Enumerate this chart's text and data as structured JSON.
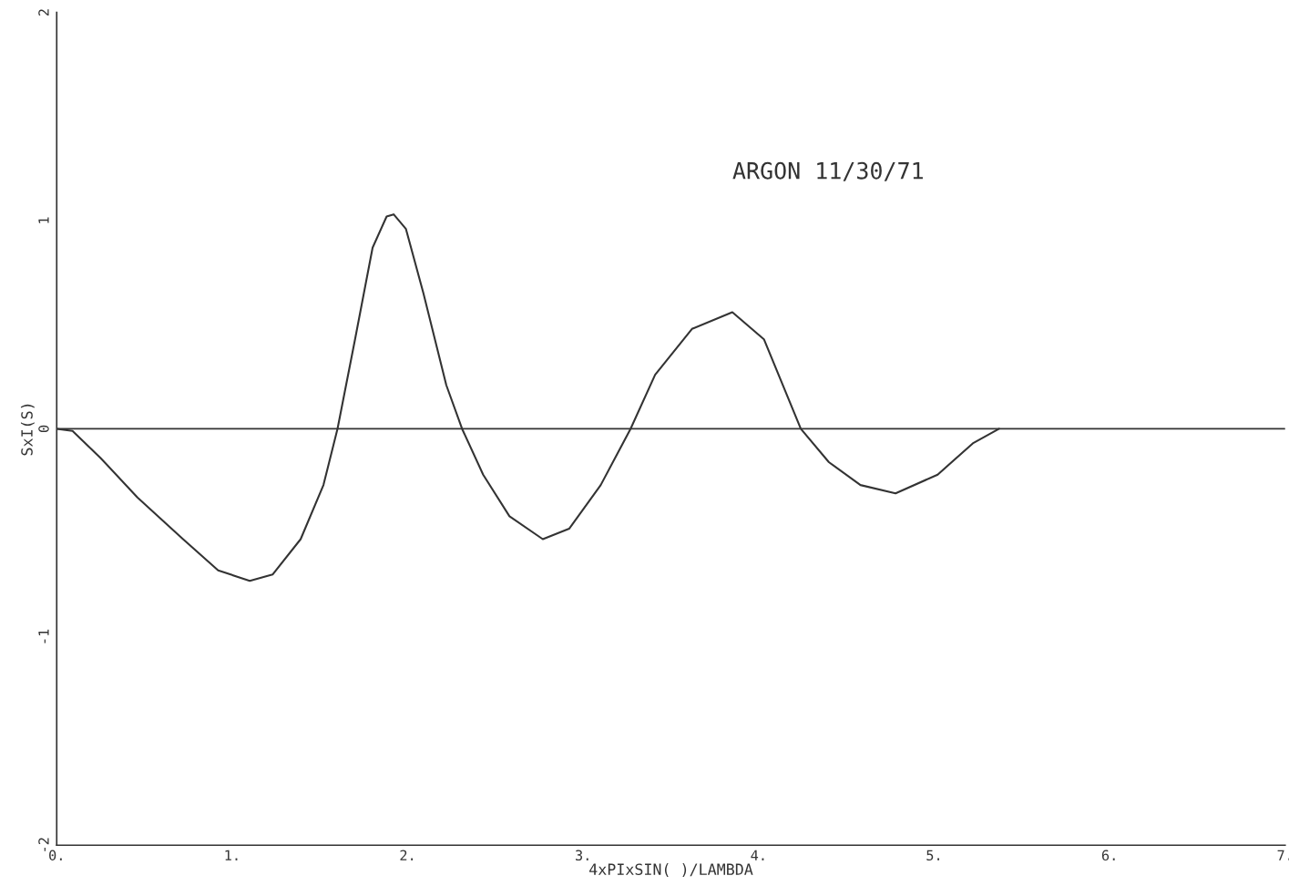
{
  "chart_data": {
    "type": "line",
    "xlabel": "4xPIxSIN( )/LAMBDA",
    "ylabel": "SxI(S)",
    "annotations": [
      "ARGON 11/30/71"
    ],
    "x": [
      0,
      0.09,
      0.25,
      0.46,
      0.72,
      0.92,
      1.1,
      1.23,
      1.39,
      1.52,
      1.6,
      1.7,
      1.8,
      1.88,
      1.92,
      1.99,
      2.09,
      2.22,
      2.31,
      2.43,
      2.58,
      2.77,
      2.92,
      3.1,
      3.27,
      3.41,
      3.62,
      3.85,
      4.03,
      4.24,
      4.4,
      4.58,
      4.78,
      5.02,
      5.22,
      5.37
    ],
    "series": [
      {
        "color": "#333333",
        "values": [
          0,
          -0.01,
          -0.14,
          -0.33,
          -0.53,
          -0.68,
          -0.73,
          -0.7,
          -0.53,
          -0.27,
          0,
          0.43,
          0.87,
          1.02,
          1.03,
          0.96,
          0.65,
          0.21,
          0,
          -0.22,
          -0.42,
          -0.53,
          -0.48,
          -0.27,
          0,
          0.26,
          0.48,
          0.56,
          0.43,
          0,
          -0.16,
          -0.27,
          -0.31,
          -0.22,
          -0.07,
          0
        ]
      }
    ],
    "ref_lines": [
      {
        "axis": "y",
        "value": 0,
        "color": "#333333"
      }
    ],
    "xlim": [
      0,
      7
    ],
    "ylim": [
      -2,
      2
    ],
    "xticks": [
      {
        "value": 0,
        "label": "0."
      },
      {
        "value": 1,
        "label": "1."
      },
      {
        "value": 2,
        "label": "2."
      },
      {
        "value": 3,
        "label": "3."
      },
      {
        "value": 4,
        "label": "4."
      },
      {
        "value": 5,
        "label": "5."
      },
      {
        "value": 6,
        "label": "6."
      },
      {
        "value": 7,
        "label": "7."
      }
    ],
    "yticks": [
      -2,
      -1,
      0,
      1,
      2
    ],
    "grid": false,
    "legend": false,
    "marker": "none",
    "line_style": "solid"
  }
}
